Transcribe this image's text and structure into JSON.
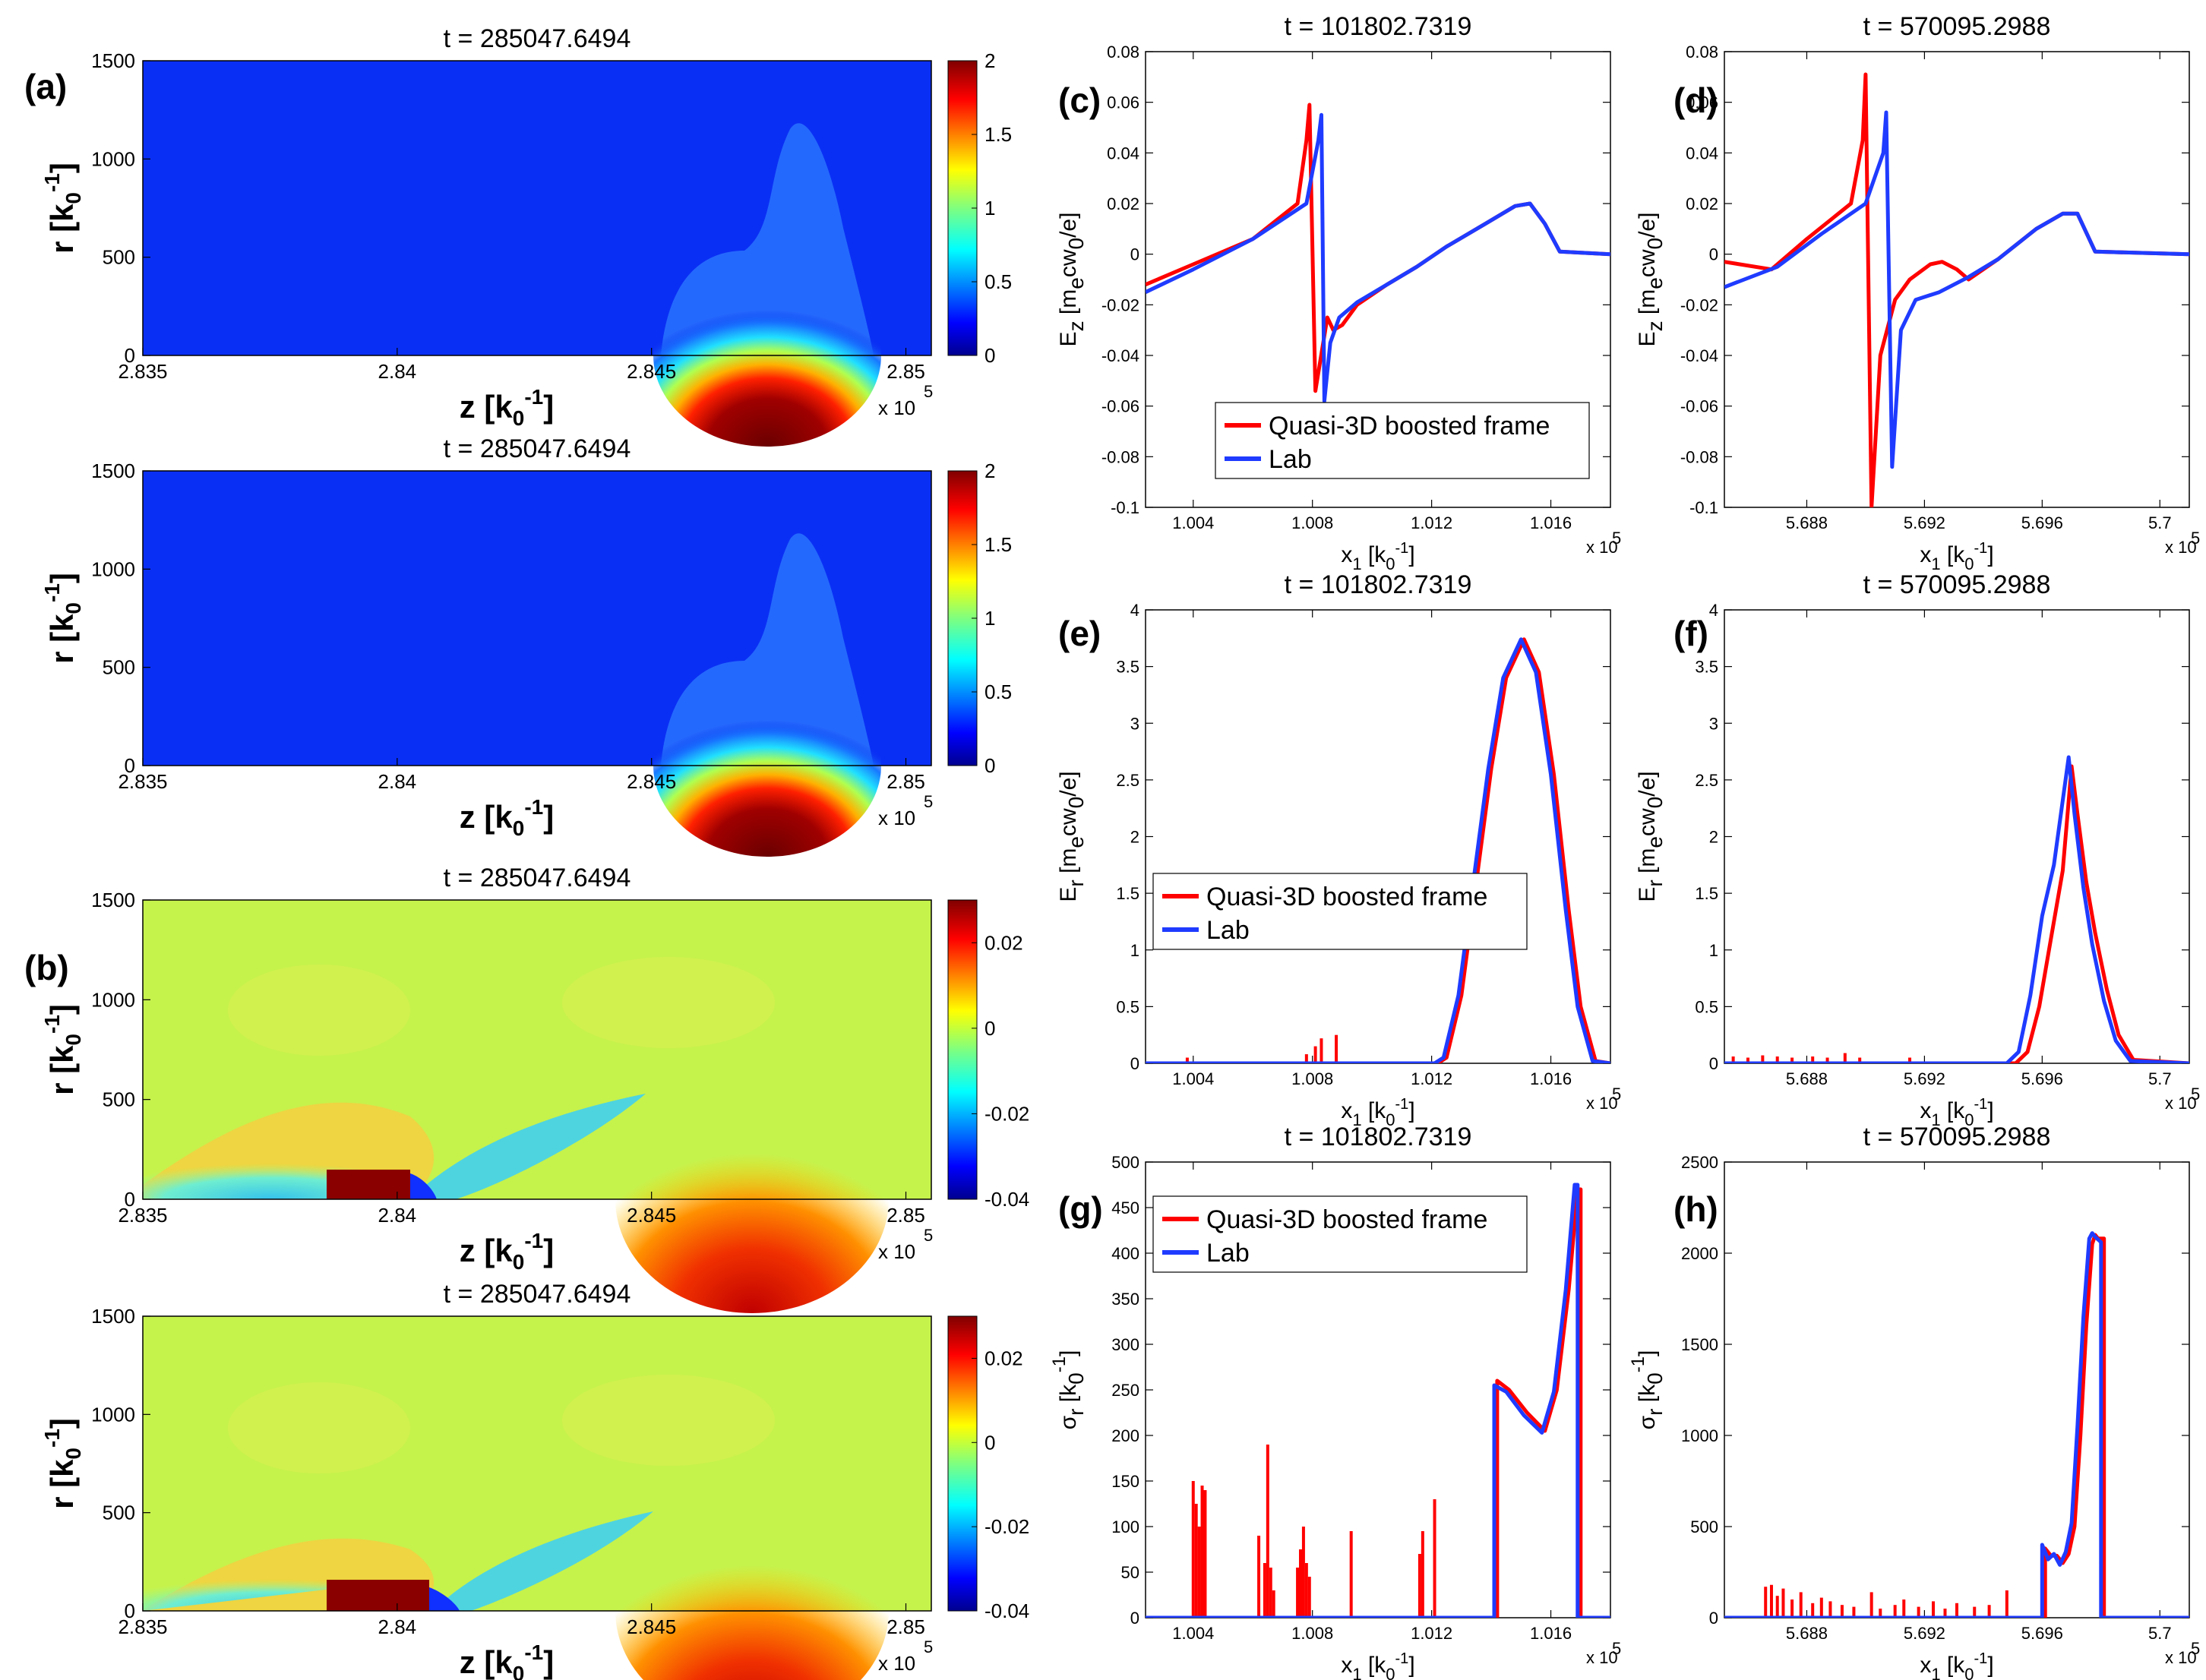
{
  "figure": {
    "panels": {
      "a": "(a)",
      "b": "(b)",
      "c": "(c)",
      "d": "(d)",
      "e": "(e)",
      "f": "(f)",
      "g": "(g)",
      "h": "(h)"
    },
    "colors": {
      "quasi3d": "#ff0000",
      "lab": "#1f3bff"
    },
    "exponent_label": "x 10",
    "exponent_power": "5"
  },
  "chart_data": [
    {
      "id": "a1",
      "type": "heatmap",
      "title": "t = 285047.6494",
      "xlabel": "z [k0^-1]",
      "ylabel": "r [k0^-1]",
      "xlim": [
        2.835,
        2.8505
      ],
      "ylim": [
        0,
        1500
      ],
      "xticks": [
        "2.835",
        "2.84",
        "2.845",
        "2.85"
      ],
      "yticks": [
        "0",
        "500",
        "1000",
        "1500"
      ],
      "clim": [
        0,
        2
      ],
      "cticks": [
        "0",
        "0.5",
        "1",
        "1.5",
        "2"
      ]
    },
    {
      "id": "a2",
      "type": "heatmap",
      "title": "t = 285047.6494",
      "xlabel": "z [k0^-1]",
      "ylabel": "r [k0^-1]",
      "xlim": [
        2.835,
        2.8505
      ],
      "ylim": [
        0,
        1500
      ],
      "xticks": [
        "2.835",
        "2.84",
        "2.845",
        "2.85"
      ],
      "yticks": [
        "0",
        "500",
        "1000",
        "1500"
      ],
      "clim": [
        0,
        2
      ],
      "cticks": [
        "0",
        "0.5",
        "1",
        "1.5",
        "2"
      ]
    },
    {
      "id": "b1",
      "type": "heatmap",
      "title": "t = 285047.6494",
      "xlabel": "z [k0^-1]",
      "ylabel": "r [k0^-1]",
      "xlim": [
        2.835,
        2.8505
      ],
      "ylim": [
        0,
        1500
      ],
      "xticks": [
        "2.835",
        "2.84",
        "2.845",
        "2.85"
      ],
      "yticks": [
        "0",
        "500",
        "1000",
        "1500"
      ],
      "clim": [
        -0.04,
        0.03
      ],
      "cticks": [
        "-0.04",
        "-0.02",
        "0",
        "0.02"
      ]
    },
    {
      "id": "b2",
      "type": "heatmap",
      "title": "t = 285047.6494",
      "xlabel": "z [k0^-1]",
      "ylabel": "r [k0^-1]",
      "xlim": [
        2.835,
        2.8505
      ],
      "ylim": [
        0,
        1500
      ],
      "xticks": [
        "2.835",
        "2.84",
        "2.845",
        "2.85"
      ],
      "yticks": [
        "0",
        "500",
        "1000",
        "1500"
      ],
      "clim": [
        -0.04,
        0.03
      ],
      "cticks": [
        "-0.04",
        "-0.02",
        "0",
        "0.02"
      ]
    },
    {
      "id": "c",
      "type": "line",
      "title": "t = 101802.7319",
      "xlabel": "x1 [k0^-1]",
      "ylabel": "Ez [me c w0/e]",
      "xlim": [
        1.0024,
        1.018
      ],
      "ylim": [
        -0.1,
        0.08
      ],
      "xticks": [
        1.004,
        1.008,
        1.012,
        1.016
      ],
      "xticklabels": [
        "1.004",
        "1.008",
        "1.012",
        "1.016"
      ],
      "yticks": [
        -0.1,
        -0.08,
        -0.06,
        -0.04,
        -0.02,
        0,
        0.02,
        0.04,
        0.06,
        0.08
      ],
      "yticklabels": [
        "-0.1",
        "-0.08",
        "-0.06",
        "-0.04",
        "-0.02",
        "0",
        "0.02",
        "0.04",
        "0.06",
        "0.08"
      ],
      "legend": [
        "Quasi-3D boosted frame",
        "Lab"
      ],
      "series": [
        {
          "name": "Quasi-3D boosted frame",
          "color": "#ff0000",
          "x": [
            1.0024,
            1.004,
            1.006,
            1.0075,
            1.0078,
            1.0079,
            1.0081,
            1.0085,
            1.0087,
            1.009,
            1.0095,
            1.0105,
            1.0115,
            1.0125,
            1.0138,
            1.0148,
            1.0153,
            1.0158,
            1.0163,
            1.018
          ],
          "y": [
            -0.012,
            -0.004,
            0.006,
            0.02,
            0.045,
            0.059,
            -0.054,
            -0.025,
            -0.03,
            -0.028,
            -0.02,
            -0.012,
            -0.005,
            0.003,
            0.012,
            0.019,
            0.02,
            0.012,
            0.001,
            0
          ]
        },
        {
          "name": "Lab",
          "color": "#1f3bff",
          "x": [
            1.0024,
            1.004,
            1.006,
            1.0078,
            1.0082,
            1.0083,
            1.0084,
            1.0086,
            1.0089,
            1.0095,
            1.0105,
            1.0115,
            1.0125,
            1.0138,
            1.0148,
            1.0153,
            1.0158,
            1.0163,
            1.018
          ],
          "y": [
            -0.015,
            -0.006,
            0.006,
            0.02,
            0.045,
            0.055,
            -0.058,
            -0.035,
            -0.025,
            -0.019,
            -0.012,
            -0.005,
            0.003,
            0.012,
            0.019,
            0.02,
            0.012,
            0.001,
            0
          ]
        }
      ]
    },
    {
      "id": "d",
      "type": "line",
      "title": "t = 570095.2988",
      "xlabel": "x1 [k0^-1]",
      "ylabel": "Ez [me c w0/e]",
      "xlim": [
        5.6852,
        5.701
      ],
      "ylim": [
        -0.1,
        0.08
      ],
      "xticks": [
        5.688,
        5.692,
        5.696,
        5.7
      ],
      "xticklabels": [
        "5.688",
        "5.692",
        "5.696",
        "5.7"
      ],
      "yticks": [
        -0.1,
        -0.08,
        -0.06,
        -0.04,
        -0.02,
        0,
        0.02,
        0.04,
        0.06,
        0.08
      ],
      "yticklabels": [
        "-0.1",
        "-0.08",
        "-0.06",
        "-0.04",
        "-0.02",
        "0",
        "0.02",
        "0.04",
        "0.06",
        "0.08"
      ],
      "series": [
        {
          "name": "Quasi-3D boosted frame",
          "color": "#ff0000",
          "x": [
            5.6852,
            5.6868,
            5.688,
            5.6895,
            5.6899,
            5.69,
            5.6902,
            5.6905,
            5.691,
            5.6915,
            5.6922,
            5.6926,
            5.6931,
            5.6935,
            5.6945,
            5.6958,
            5.6967,
            5.6972,
            5.6978,
            5.701
          ],
          "y": [
            -0.003,
            -0.006,
            0.006,
            0.02,
            0.045,
            0.071,
            -0.1,
            -0.04,
            -0.018,
            -0.01,
            -0.004,
            -0.003,
            -0.006,
            -0.01,
            -0.002,
            0.01,
            0.016,
            0.016,
            0.001,
            0
          ]
        },
        {
          "name": "Lab",
          "color": "#1f3bff",
          "x": [
            5.6852,
            5.687,
            5.6885,
            5.69,
            5.6906,
            5.6907,
            5.6909,
            5.6912,
            5.6917,
            5.6925,
            5.6935,
            5.6945,
            5.6958,
            5.6967,
            5.6972,
            5.6978,
            5.701
          ],
          "y": [
            -0.013,
            -0.005,
            0.008,
            0.02,
            0.04,
            0.056,
            -0.084,
            -0.03,
            -0.018,
            -0.015,
            -0.009,
            -0.002,
            0.01,
            0.016,
            0.016,
            0.001,
            0
          ]
        }
      ]
    },
    {
      "id": "e",
      "type": "line",
      "title": "t = 101802.7319",
      "xlabel": "x1 [k0^-1]",
      "ylabel": "Er [me c w0/e]",
      "xlim": [
        1.0024,
        1.018
      ],
      "ylim": [
        0,
        4
      ],
      "xticks": [
        1.004,
        1.008,
        1.012,
        1.016
      ],
      "xticklabels": [
        "1.004",
        "1.008",
        "1.012",
        "1.016"
      ],
      "yticks": [
        0,
        0.5,
        1,
        1.5,
        2,
        2.5,
        3,
        3.5,
        4
      ],
      "yticklabels": [
        "0",
        "0.5",
        "1",
        "1.5",
        "2",
        "2.5",
        "3",
        "3.5",
        "4"
      ],
      "legend": [
        "Quasi-3D boosted frame",
        "Lab"
      ],
      "series": [
        {
          "name": "Quasi-3D boosted frame",
          "color": "#ff0000",
          "x": [
            1.0024,
            1.0122,
            1.0125,
            1.013,
            1.0135,
            1.014,
            1.0145,
            1.0151,
            1.0156,
            1.0161,
            1.0166,
            1.017,
            1.0175,
            1.018
          ],
          "y": [
            0,
            0,
            0.05,
            0.6,
            1.6,
            2.6,
            3.4,
            3.74,
            3.45,
            2.55,
            1.35,
            0.5,
            0.02,
            0
          ]
        },
        {
          "name": "Lab",
          "color": "#1f3bff",
          "x": [
            1.0024,
            1.0121,
            1.0124,
            1.0129,
            1.0134,
            1.0139,
            1.0144,
            1.015,
            1.0155,
            1.016,
            1.0165,
            1.0169,
            1.0174,
            1.018
          ],
          "y": [
            0,
            0,
            0.05,
            0.6,
            1.6,
            2.6,
            3.4,
            3.74,
            3.45,
            2.55,
            1.35,
            0.5,
            0.02,
            0
          ]
        }
      ],
      "spikes": {
        "x": [
          1.0038,
          1.0078,
          1.0081,
          1.0083,
          1.0088
        ],
        "y": [
          0.05,
          0.08,
          0.15,
          0.22,
          0.25
        ]
      }
    },
    {
      "id": "f",
      "type": "line",
      "title": "t = 570095.2988",
      "xlabel": "x1 [k0^-1]",
      "ylabel": "Er [me c w0/e]",
      "xlim": [
        5.6852,
        5.701
      ],
      "ylim": [
        0,
        4
      ],
      "xticks": [
        5.688,
        5.692,
        5.696,
        5.7
      ],
      "xticklabels": [
        "5.688",
        "5.692",
        "5.696",
        "5.7"
      ],
      "yticks": [
        0,
        0.5,
        1,
        1.5,
        2,
        2.5,
        3,
        3.5,
        4
      ],
      "yticklabels": [
        "0",
        "0.5",
        "1",
        "1.5",
        "2",
        "2.5",
        "3",
        "3.5",
        "4"
      ],
      "series": [
        {
          "name": "Quasi-3D boosted frame",
          "color": "#ff0000",
          "x": [
            5.6852,
            5.6951,
            5.6955,
            5.6959,
            5.6963,
            5.6967,
            5.697,
            5.6972,
            5.6975,
            5.6978,
            5.6982,
            5.6986,
            5.6991,
            5.701
          ],
          "y": [
            0,
            0,
            0.1,
            0.5,
            1.1,
            1.7,
            2.62,
            2.2,
            1.6,
            1.15,
            0.65,
            0.25,
            0.03,
            0
          ]
        },
        {
          "name": "Lab",
          "color": "#1f3bff",
          "x": [
            5.6852,
            5.6948,
            5.6952,
            5.6956,
            5.696,
            5.6964,
            5.6969,
            5.6971,
            5.6974,
            5.6977,
            5.6981,
            5.6985,
            5.699,
            5.701
          ],
          "y": [
            0,
            0,
            0.1,
            0.6,
            1.3,
            1.75,
            2.7,
            2.2,
            1.55,
            1.05,
            0.55,
            0.2,
            0.02,
            0
          ]
        }
      ],
      "spikes": {
        "x": [
          5.6855,
          5.686,
          5.6865,
          5.687,
          5.6875,
          5.6882,
          5.6887,
          5.6893,
          5.6898,
          5.6915
        ],
        "y": [
          0.06,
          0.05,
          0.07,
          0.06,
          0.05,
          0.06,
          0.05,
          0.09,
          0.05,
          0.05
        ]
      }
    },
    {
      "id": "g",
      "type": "line",
      "title": "t = 101802.7319",
      "xlabel": "x1 [k0^-1]",
      "ylabel": "sigma_r [k0^-1]",
      "xlim": [
        1.0024,
        1.018
      ],
      "ylim": [
        0,
        500
      ],
      "xticks": [
        1.004,
        1.008,
        1.012,
        1.016
      ],
      "xticklabels": [
        "1.004",
        "1.008",
        "1.012",
        "1.016"
      ],
      "yticks": [
        0,
        50,
        100,
        150,
        200,
        250,
        300,
        350,
        400,
        450,
        500
      ],
      "yticklabels": [
        "0",
        "50",
        "100",
        "150",
        "200",
        "250",
        "300",
        "350",
        "400",
        "450",
        "500"
      ],
      "legend": [
        "Quasi-3D boosted frame",
        "Lab"
      ],
      "series": [
        {
          "name": "Quasi-3D boosted frame",
          "color": "#ff0000",
          "x": [
            1.0024,
            1.0142,
            1.0142,
            1.0146,
            1.0152,
            1.0158,
            1.0162,
            1.0166,
            1.0169,
            1.017,
            1.017,
            1.018
          ],
          "y": [
            0,
            0,
            260,
            250,
            225,
            205,
            250,
            360,
            470,
            470,
            0,
            0
          ]
        },
        {
          "name": "Lab",
          "color": "#1f3bff",
          "x": [
            1.0024,
            1.0141,
            1.0141,
            1.0145,
            1.0151,
            1.0157,
            1.0161,
            1.0165,
            1.0168,
            1.0169,
            1.0169,
            1.018
          ],
          "y": [
            0,
            0,
            255,
            248,
            222,
            203,
            248,
            360,
            475,
            475,
            0,
            0
          ]
        }
      ],
      "spikes": {
        "x": [
          1.004,
          1.0041,
          1.0042,
          1.0043,
          1.0044,
          1.0062,
          1.0064,
          1.0065,
          1.0066,
          1.0067,
          1.0075,
          1.0076,
          1.0077,
          1.0078,
          1.0079,
          1.0093,
          1.0116,
          1.0117,
          1.0121
        ],
        "y": [
          150,
          125,
          100,
          145,
          140,
          90,
          60,
          190,
          55,
          30,
          55,
          75,
          100,
          60,
          45,
          95,
          70,
          95,
          130
        ]
      }
    },
    {
      "id": "h",
      "type": "line",
      "title": "t = 570095.2988",
      "xlabel": "x1 [k0^-1]",
      "ylabel": "sigma_r [k0^-1]",
      "xlim": [
        5.6852,
        5.701
      ],
      "ylim": [
        0,
        2500
      ],
      "xticks": [
        5.688,
        5.692,
        5.696,
        5.7
      ],
      "xticklabels": [
        "5.688",
        "5.692",
        "5.696",
        "5.7"
      ],
      "yticks": [
        0,
        500,
        1000,
        1500,
        2000,
        2500
      ],
      "yticklabels": [
        "0",
        "500",
        "1000",
        "1500",
        "2000",
        "2500"
      ],
      "series": [
        {
          "name": "Quasi-3D boosted frame",
          "color": "#ff0000",
          "x": [
            5.6852,
            5.6961,
            5.6961,
            5.6963,
            5.6965,
            5.6967,
            5.6969,
            5.6971,
            5.6973,
            5.6975,
            5.6977,
            5.6978,
            5.6979,
            5.6981,
            5.6981,
            5.701
          ],
          "y": [
            0,
            0,
            380,
            340,
            340,
            300,
            350,
            500,
            1000,
            1600,
            2050,
            2100,
            2080,
            2080,
            0,
            0
          ]
        },
        {
          "name": "Lab",
          "color": "#1f3bff",
          "x": [
            5.6852,
            5.696,
            5.696,
            5.6962,
            5.6964,
            5.6966,
            5.6968,
            5.697,
            5.6972,
            5.6974,
            5.6976,
            5.6977,
            5.6978,
            5.698,
            5.698,
            5.701
          ],
          "y": [
            0,
            0,
            400,
            320,
            350,
            290,
            360,
            520,
            1050,
            1650,
            2080,
            2110,
            2090,
            2060,
            0,
            0
          ]
        }
      ],
      "spikes": {
        "x": [
          5.6866,
          5.6868,
          5.687,
          5.6872,
          5.6875,
          5.6878,
          5.6882,
          5.6885,
          5.6888,
          5.6892,
          5.6896,
          5.6902,
          5.6905,
          5.691,
          5.6913,
          5.6918,
          5.6923,
          5.6927,
          5.6931,
          5.6937,
          5.6942,
          5.6948
        ],
        "y": [
          170,
          180,
          120,
          160,
          100,
          140,
          80,
          110,
          90,
          70,
          60,
          140,
          50,
          70,
          100,
          60,
          90,
          50,
          80,
          60,
          70,
          150
        ]
      }
    }
  ]
}
